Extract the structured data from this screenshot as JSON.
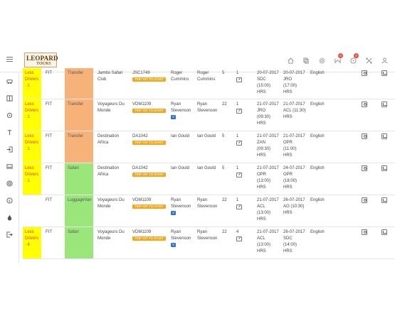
{
  "logo": {
    "main": "LEOPARD",
    "sub": "TOURS"
  },
  "topbar": {
    "icons": [
      {
        "name": "home-icon",
        "badge": ""
      },
      {
        "name": "copy-icon",
        "badge": ""
      },
      {
        "name": "gear-icon",
        "badge": ""
      },
      {
        "name": "mail-icon",
        "badge": "0"
      },
      {
        "name": "bell-icon",
        "badge": "0"
      },
      {
        "name": "expand-icon",
        "badge": ""
      },
      {
        "name": "user-icon",
        "badge": ""
      }
    ]
  },
  "sidebar": {
    "icons": [
      "car-icon",
      "book-icon",
      "target-icon",
      "pin-icon",
      "signin-icon",
      "id-card-icon",
      "lifebuoy-icon",
      "coin-icon",
      "drop-icon",
      "signout-icon"
    ]
  },
  "rows": [
    {
      "drivers": "Less Drivers : 1",
      "drivers_flag": true,
      "cat": "FIT",
      "type": "Transfer",
      "type_color": "transfer",
      "client": "Jambo Safari Club",
      "ref": "JSC1749",
      "status": "TRIP YET TO START",
      "g1": "Roger Cummins",
      "g1_badge": "",
      "g2": "Roger Cummins",
      "pax": "5",
      "num": "1",
      "from": "20-07-2017 SDC (15:00) HRS",
      "to": "20-07-2017 JRO (17:00) HRS",
      "lang": "English"
    },
    {
      "drivers": "Less Drivers : 1",
      "drivers_flag": true,
      "cat": "FIT",
      "type": "Transfer",
      "type_color": "transfer",
      "client": "Voyageurs Du Monde",
      "ref": "VDM1109",
      "status": "TRIP YET TO START",
      "g1": "Ryan Stevenson",
      "g1_badge": "V",
      "g2": "Ryan Stevenson",
      "pax": "22",
      "num": "1",
      "from": "21-07-2017 JRO (09:30) HRS",
      "to": "21-07-2017 ACL (11:30) HRS",
      "lang": "English"
    },
    {
      "drivers": "Less Drivers : 1",
      "drivers_flag": true,
      "cat": "FIT",
      "type": "Transfer",
      "type_color": "transfer",
      "client": "Destination Africa",
      "ref": "DA1042",
      "status": "TRIP YET TO START",
      "g1": "Ian Gould",
      "g1_badge": "",
      "g2": "Ian Gould",
      "pax": "5",
      "num": "1",
      "from": "21-07-2017 ZAN (09:30) HRS",
      "to": "21-07-2017 OPR (11:00) HRS",
      "lang": "English"
    },
    {
      "drivers": "Less Drivers : 1",
      "drivers_flag": true,
      "cat": "FIT",
      "type": "Safari",
      "type_color": "safari",
      "client": "Destination Africa",
      "ref": "DA1042",
      "status": "TRIP YET TO START",
      "g1": "Ian Gould",
      "g1_badge": "",
      "g2": "Ian Gould",
      "pax": "5",
      "num": "1",
      "from": "21-07-2017 OPR (13:00) HRS",
      "to": "24-07-2017 OPR (18:00) HRS",
      "lang": "English"
    },
    {
      "drivers": "",
      "drivers_flag": false,
      "cat": "FIT",
      "type": "LuggageVan",
      "type_color": "safari",
      "client": "Voyageurs Du Monde",
      "ref": "VDM1109",
      "status": "TRIP YET TO START",
      "g1": "Ryan Stevenson",
      "g1_badge": "V",
      "g2": "Ryan Stevenson",
      "pax": "22",
      "num": "1",
      "from": "21-07-2017 ACL (13:00) HRS",
      "to": "26-07-2017 AO (10:30) HRS",
      "lang": "English"
    },
    {
      "drivers": "Less Drivers : 4",
      "drivers_flag": true,
      "cat": "FIT",
      "type": "Safari",
      "type_color": "safari",
      "client": "Voyageurs Du Monde",
      "ref": "VDM1109",
      "status": "TRIP YET TO START",
      "g1": "Ryan Stevenson",
      "g1_badge": "V",
      "g2": "Ryan Stevenson",
      "pax": "22",
      "num": "4",
      "from": "21-07-2017 ACL (13:00) HRS",
      "to": "26-07-2017 SDC (14:00) HRS",
      "lang": "English"
    }
  ]
}
